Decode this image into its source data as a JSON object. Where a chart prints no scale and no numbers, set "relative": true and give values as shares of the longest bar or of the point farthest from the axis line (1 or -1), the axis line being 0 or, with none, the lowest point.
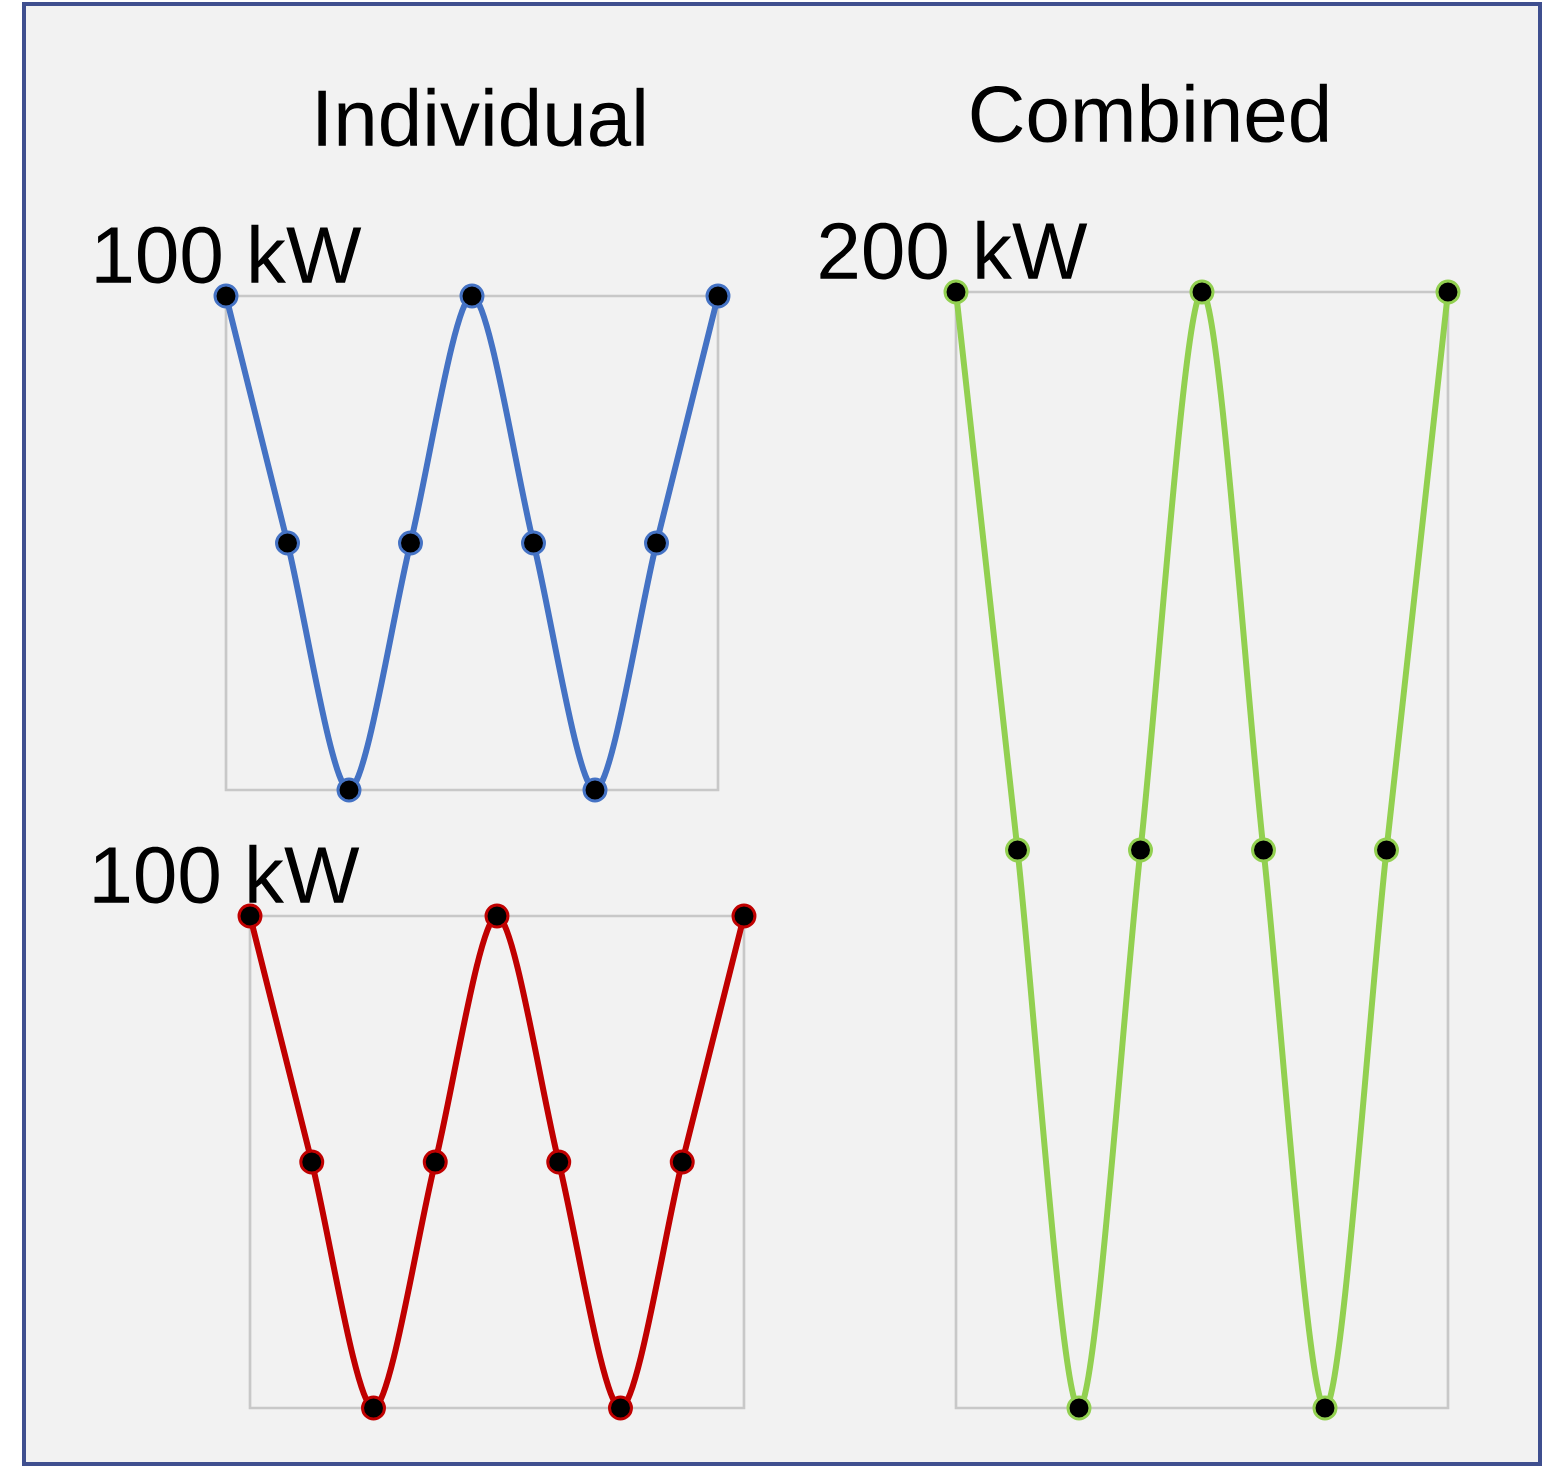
{
  "chart_data": [
    {
      "type": "line",
      "title": "Individual",
      "categories": [
        null,
        null,
        null,
        null,
        null,
        null,
        null,
        null,
        null
      ],
      "relative": true,
      "marker": "circle",
      "annotations": [
        "100 kW"
      ],
      "series": [
        {
          "color": "#4472c4",
          "values": [
            1,
            0.5,
            0,
            0.5,
            1,
            0.5,
            0,
            0.5,
            1
          ]
        }
      ]
    },
    {
      "type": "line",
      "categories": [
        null,
        null,
        null,
        null,
        null,
        null,
        null,
        null,
        null
      ],
      "relative": true,
      "marker": "circle",
      "annotations": [
        "100 kW"
      ],
      "series": [
        {
          "color": "#c00000",
          "values": [
            1,
            0.5,
            0,
            0.5,
            1,
            0.5,
            0,
            0.5,
            1
          ]
        }
      ]
    },
    {
      "type": "line",
      "title": "Combined",
      "categories": [
        null,
        null,
        null,
        null,
        null,
        null,
        null,
        null,
        null
      ],
      "relative": true,
      "marker": "circle",
      "annotations": [
        "200 kW"
      ],
      "series": [
        {
          "color": "#92d050",
          "values": [
            1,
            0.5,
            0,
            0.5,
            1,
            0.5,
            0,
            0.5,
            1
          ]
        }
      ]
    }
  ]
}
